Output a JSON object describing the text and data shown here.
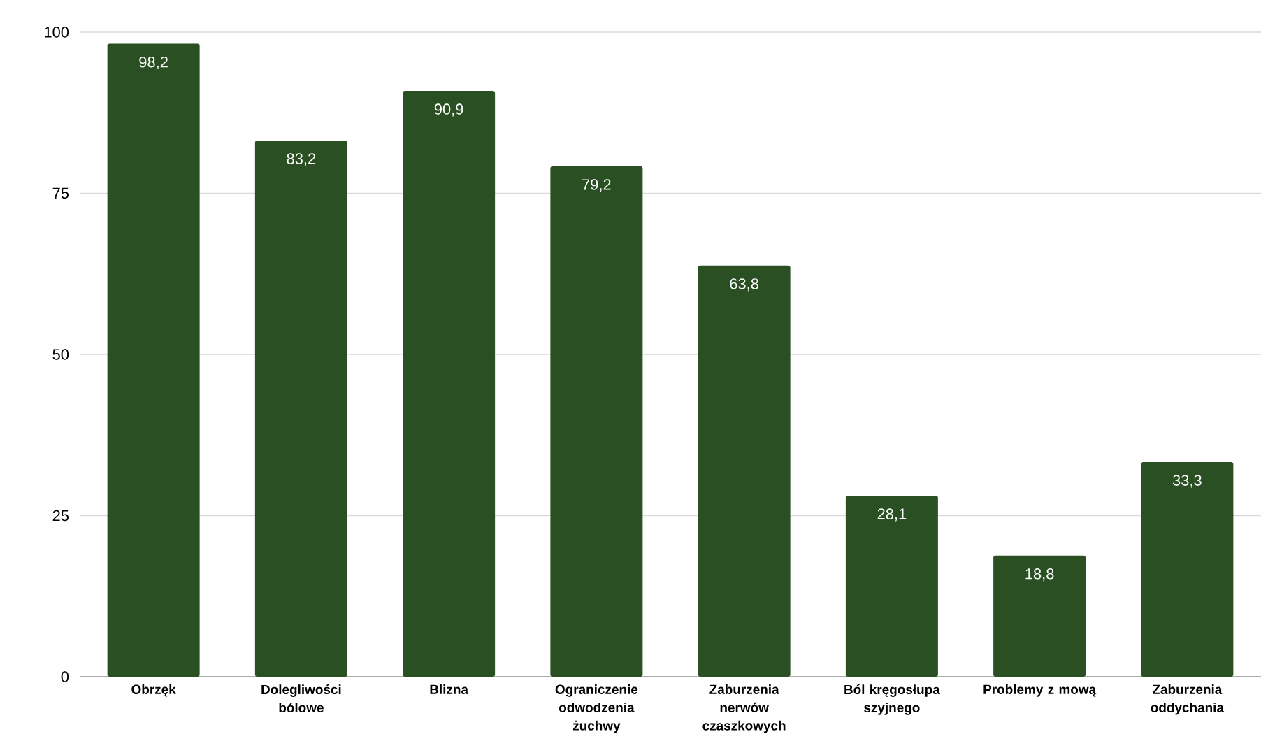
{
  "chart_data": {
    "type": "bar",
    "categories": [
      "Obrzęk",
      "Dolegliwości bólowe",
      "Blizna",
      "Ograniczenie odwodzenia żuchwy",
      "Zaburzenia nerwów czaszkowych",
      "Ból kręgosłupa szyjnego",
      "Problemy z mową",
      "Zaburzenia oddychania"
    ],
    "values": [
      98.2,
      83.2,
      90.9,
      79.2,
      63.8,
      28.1,
      18.8,
      33.3
    ],
    "value_labels": [
      "98,2",
      "83,2",
      "90,9",
      "79,2",
      "63,8",
      "28,1",
      "18,8",
      "33,3"
    ],
    "color": "#2a4f23",
    "ylim": [
      0,
      100
    ],
    "yticks": [
      0,
      25,
      50,
      75,
      100
    ],
    "grid": "y"
  }
}
